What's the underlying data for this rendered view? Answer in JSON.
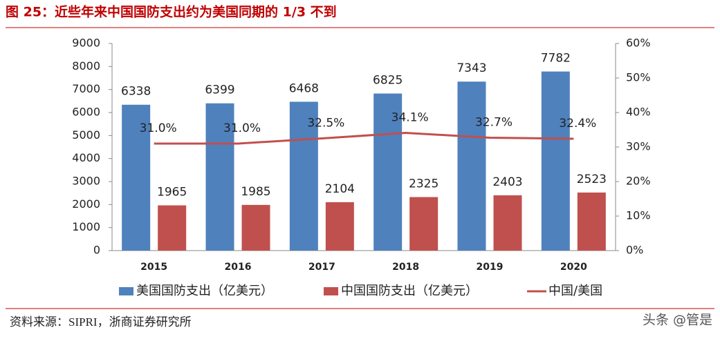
{
  "title": "图 25：近些年来中国国防支出约为美国同期的 1/3 不到",
  "source": "资料来源：SIPRI，浙商证券研究所",
  "watermark": "头条 @管是",
  "chart_data": {
    "type": "bar",
    "categories": [
      "2015",
      "2016",
      "2017",
      "2018",
      "2019",
      "2020"
    ],
    "series": [
      {
        "name": "美国国防支出（亿美元）",
        "type": "bar",
        "color": "#4f81bd",
        "values": [
          6338,
          6399,
          6468,
          6825,
          7343,
          7782
        ]
      },
      {
        "name": "中国国防支出（亿美元）",
        "type": "bar",
        "color": "#c0504d",
        "values": [
          1965,
          1985,
          2104,
          2325,
          2403,
          2523
        ]
      },
      {
        "name": "中国/美国",
        "type": "line",
        "axis": "y2",
        "color": "#c0504d",
        "values": [
          31.0,
          31.0,
          32.5,
          34.1,
          32.7,
          32.4
        ],
        "value_labels": [
          "31.0%",
          "31.0%",
          "32.5%",
          "34.1%",
          "32.7%",
          "32.4%"
        ]
      }
    ],
    "ylim": [
      0,
      9000
    ],
    "yticks": [
      0,
      1000,
      2000,
      3000,
      4000,
      5000,
      6000,
      7000,
      8000,
      9000
    ],
    "y2lim": [
      0,
      60
    ],
    "y2ticks": [
      {
        "value": 0,
        "label": "0%"
      },
      {
        "value": 10,
        "label": "10%"
      },
      {
        "value": 20,
        "label": "20%"
      },
      {
        "value": 30,
        "label": "30%"
      },
      {
        "value": 40,
        "label": "40%"
      },
      {
        "value": 50,
        "label": "50%"
      },
      {
        "value": 60,
        "label": "60%"
      }
    ],
    "legend": "bottom"
  }
}
